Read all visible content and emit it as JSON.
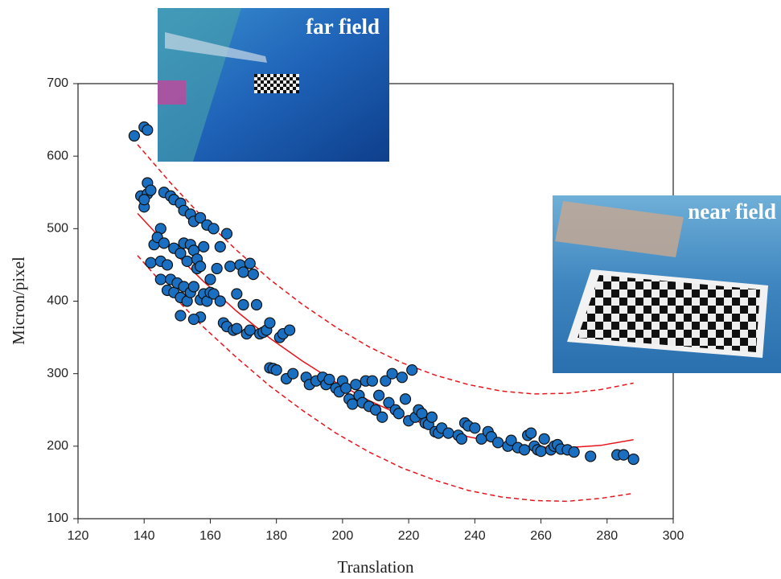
{
  "chart_data": {
    "type": "scatter",
    "x_label": "Translation",
    "y_label": "Micron/pixel",
    "xlim": [
      120,
      300
    ],
    "ylim": [
      100,
      700
    ],
    "xticks": [
      120,
      140,
      160,
      180,
      200,
      220,
      240,
      260,
      280,
      300
    ],
    "yticks": [
      100,
      200,
      300,
      400,
      500,
      600,
      700
    ],
    "annotations": [
      "far field",
      "near field"
    ],
    "series": [
      {
        "color": "#1a6fc0",
        "x": [
          137,
          140,
          141,
          139,
          140,
          141,
          141,
          142,
          140,
          143,
          142,
          145,
          144,
          146,
          145,
          147,
          146,
          148,
          149,
          151,
          152,
          154,
          155,
          157,
          159,
          161,
          165,
          145,
          147,
          148,
          149,
          150,
          151,
          152,
          153,
          151,
          154,
          155,
          156,
          157,
          158,
          159,
          160,
          161,
          157,
          155,
          149,
          151,
          152,
          153,
          154,
          155,
          156,
          157,
          158,
          160,
          162,
          163,
          163,
          164,
          165,
          166,
          167,
          168,
          168,
          169,
          170,
          170,
          171,
          172,
          172,
          173,
          174,
          175,
          176,
          177,
          178,
          178,
          179,
          180,
          181,
          182,
          184,
          183,
          185,
          189,
          190,
          192,
          194,
          195,
          196,
          198,
          199,
          200,
          201,
          202,
          203,
          204,
          205,
          206,
          207,
          208,
          209,
          210,
          211,
          212,
          213,
          214,
          215,
          216,
          217,
          218,
          219,
          220,
          221,
          222,
          223,
          224,
          225,
          226,
          227,
          228,
          229,
          230,
          232,
          235,
          236,
          237,
          238,
          240,
          242,
          244,
          245,
          247,
          250,
          251,
          253,
          255,
          256,
          257,
          258,
          259,
          260,
          261,
          263,
          264,
          265,
          266,
          268,
          270,
          275,
          283,
          285,
          288
        ],
        "values": [
          628,
          640,
          636,
          545,
          530,
          563,
          548,
          553,
          540,
          478,
          453,
          500,
          488,
          480,
          455,
          450,
          550,
          545,
          540,
          535,
          525,
          520,
          510,
          515,
          505,
          500,
          493,
          430,
          415,
          430,
          412,
          425,
          405,
          420,
          400,
          380,
          412,
          420,
          445,
          402,
          410,
          400,
          412,
          410,
          378,
          375,
          473,
          466,
          480,
          455,
          478,
          470,
          458,
          448,
          475,
          430,
          445,
          475,
          400,
          370,
          365,
          448,
          360,
          362,
          410,
          450,
          440,
          395,
          355,
          360,
          452,
          437,
          395,
          355,
          357,
          360,
          370,
          308,
          307,
          305,
          350,
          355,
          360,
          293,
          300,
          295,
          285,
          290,
          295,
          285,
          292,
          280,
          275,
          290,
          280,
          265,
          258,
          285,
          270,
          260,
          290,
          255,
          290,
          250,
          270,
          240,
          290,
          260,
          300,
          250,
          245,
          295,
          265,
          235,
          305,
          240,
          250,
          245,
          232,
          230,
          240,
          220,
          218,
          225,
          218,
          215,
          210,
          232,
          228,
          225,
          210,
          220,
          213,
          205,
          200,
          208,
          198,
          195,
          215,
          218,
          200,
          195,
          193,
          210,
          195,
          200,
          202,
          196,
          195,
          192,
          186,
          188,
          188,
          182
        ]
      }
    ],
    "fit_lines": [
      {
        "color": "#e8141c",
        "dash": false,
        "x": [
          138,
          148,
          158,
          168,
          178,
          188,
          198,
          208,
          218,
          228,
          238,
          248,
          258,
          268,
          278,
          288
        ],
        "values": [
          521,
          472,
          427,
          386,
          349,
          317,
          288,
          263,
          242,
          225,
          213,
          204,
          199,
          198,
          201,
          209
        ]
      },
      {
        "color": "#e8141c",
        "dash": true,
        "x": [
          138,
          148,
          158,
          168,
          178,
          188,
          198,
          208,
          218,
          228,
          238,
          248,
          258,
          268,
          278,
          288
        ],
        "values": [
          616,
          563,
          514,
          470,
          430,
          395,
          364,
          337,
          315,
          298,
          285,
          276,
          272,
          273,
          278,
          287
        ]
      },
      {
        "color": "#e8141c",
        "dash": true,
        "x": [
          138,
          148,
          158,
          168,
          178,
          188,
          198,
          208,
          218,
          228,
          238,
          248,
          258,
          268,
          278,
          288
        ],
        "values": [
          463,
          411,
          364,
          322,
          283,
          249,
          218,
          192,
          170,
          153,
          139,
          130,
          125,
          124,
          128,
          135
        ]
      }
    ]
  }
}
